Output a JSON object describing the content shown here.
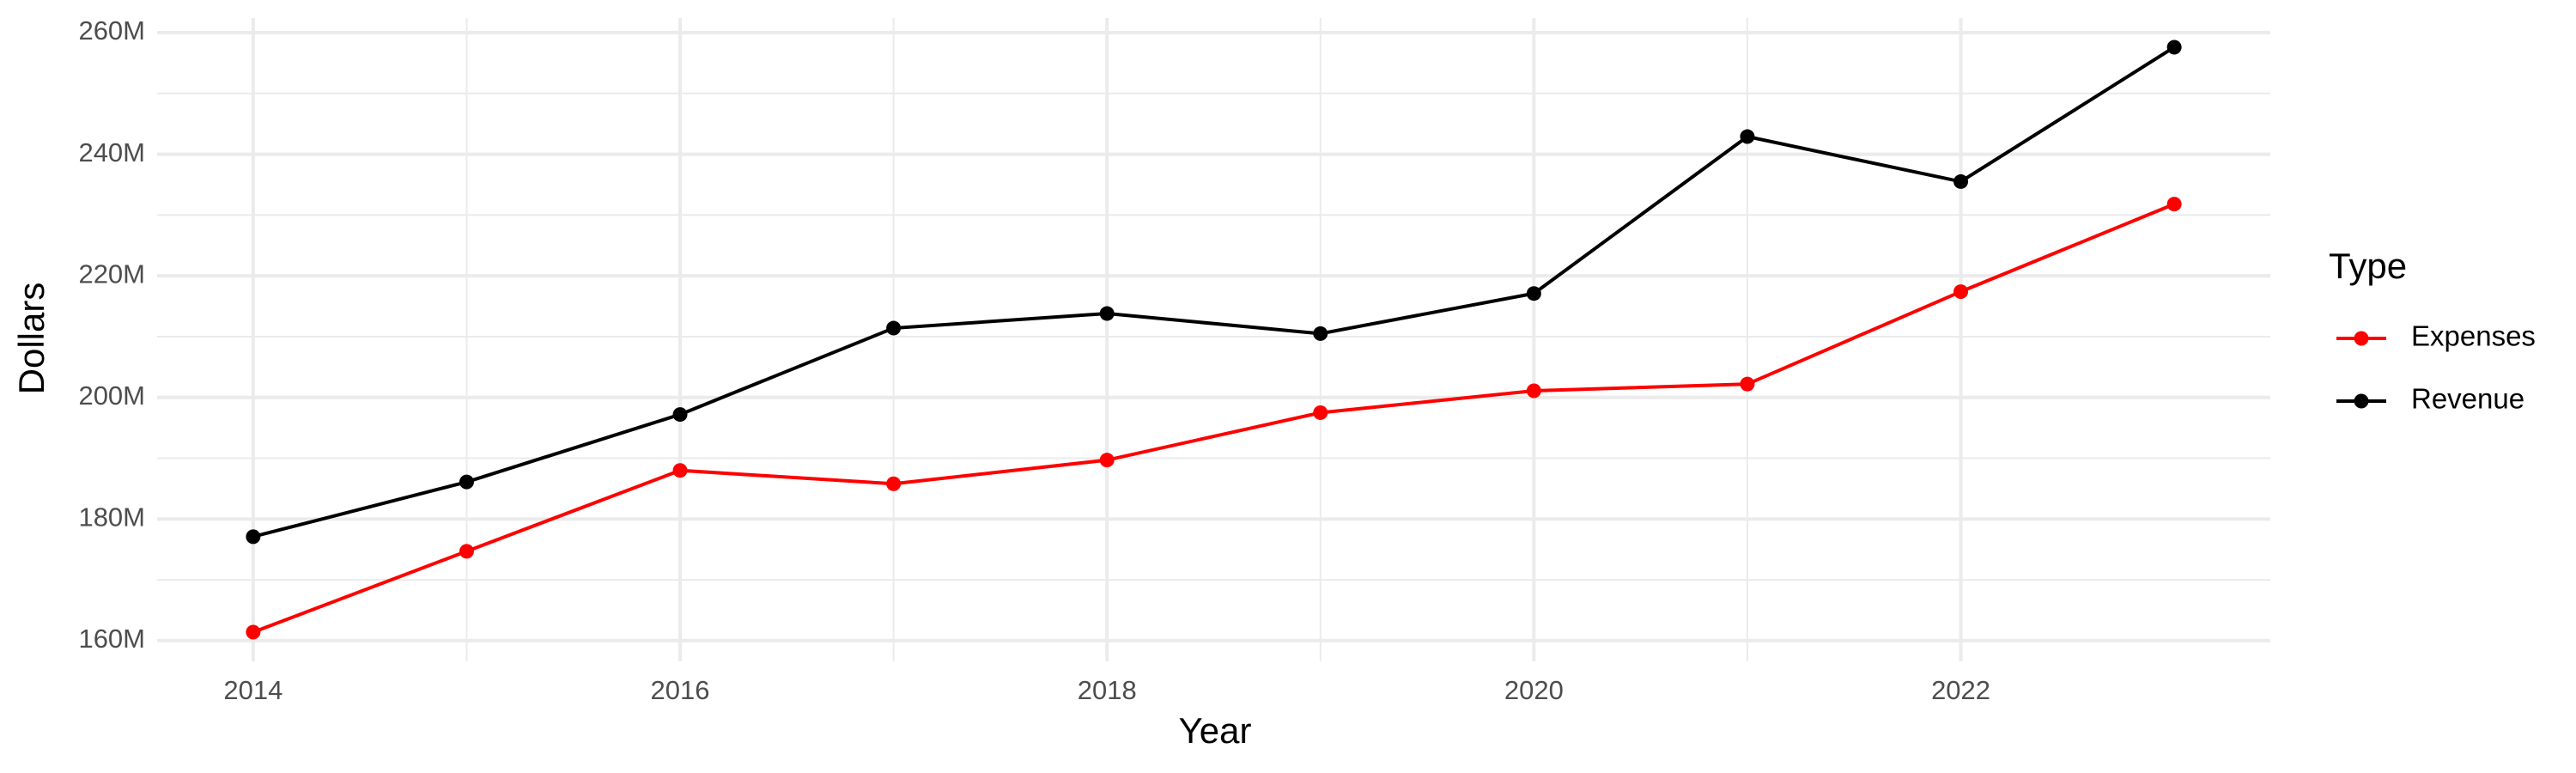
{
  "chart_data": {
    "type": "line",
    "x": [
      2014,
      2015,
      2016,
      2017,
      2018,
      2019,
      2020,
      2021,
      2022,
      2023
    ],
    "series": [
      {
        "name": "Expenses",
        "color": "#ff0000",
        "values": [
          161400000,
          174700000,
          188000000,
          185800000,
          189700000,
          197500000,
          201100000,
          202200000,
          217400000,
          231800000
        ]
      },
      {
        "name": "Revenue",
        "color": "#000000",
        "values": [
          177100000,
          186100000,
          197200000,
          211400000,
          213800000,
          210500000,
          217100000,
          242900000,
          235500000,
          257600000
        ]
      }
    ],
    "x_label": "Year",
    "y_label": "Dollars",
    "legend_title": "Type",
    "xlim": [
      2013.55,
      2023.45
    ],
    "xticks": [
      2014,
      2016,
      2018,
      2020,
      2022
    ],
    "ylim": [
      156600000,
      262400000
    ],
    "yticks": [
      {
        "value": 160000000,
        "label": "160M"
      },
      {
        "value": 180000000,
        "label": "180M"
      },
      {
        "value": 200000000,
        "label": "200M"
      },
      {
        "value": 220000000,
        "label": "220M"
      },
      {
        "value": 240000000,
        "label": "240M"
      },
      {
        "value": 260000000,
        "label": "260M"
      }
    ],
    "grid": true,
    "legend": "right"
  }
}
